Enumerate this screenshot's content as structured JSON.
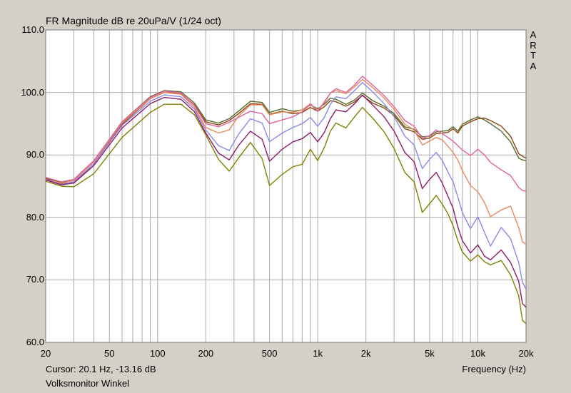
{
  "chart_data": {
    "type": "line",
    "title": "FR Magnitude dB re 20uPa/V (1/24 oct)",
    "side_label": [
      "A",
      "R",
      "T",
      "A"
    ],
    "xlabel": "Frequency (Hz)",
    "x_scale": "log",
    "xlim": [
      20,
      20000
    ],
    "ylim": [
      60,
      110
    ],
    "x_ticks": [
      {
        "v": 20,
        "label": "20"
      },
      {
        "v": 50,
        "label": "50"
      },
      {
        "v": 100,
        "label": "100"
      },
      {
        "v": 200,
        "label": "200"
      },
      {
        "v": 500,
        "label": "500"
      },
      {
        "v": 1000,
        "label": "1k"
      },
      {
        "v": 2000,
        "label": "2k"
      },
      {
        "v": 5000,
        "label": "5k"
      },
      {
        "v": 10000,
        "label": "10k"
      },
      {
        "v": 20000,
        "label": "20k"
      }
    ],
    "y_ticks": [
      {
        "v": 60,
        "label": "60.0"
      },
      {
        "v": 70,
        "label": "70.0"
      },
      {
        "v": 80,
        "label": "80.0"
      },
      {
        "v": 90,
        "label": "90.0"
      },
      {
        "v": 100,
        "label": "100.0"
      },
      {
        "v": 110,
        "label": "110.0"
      }
    ],
    "grid": true,
    "series": [
      {
        "color": "#556b2f",
        "x": [
          20,
          25,
          30,
          40,
          60,
          90,
          110,
          140,
          170,
          200,
          240,
          280,
          320,
          380,
          450,
          500,
          600,
          700,
          800,
          900,
          1000,
          1100,
          1200,
          1300,
          1500,
          1700,
          1900,
          2200,
          2600,
          3000,
          3500,
          4000,
          4500,
          5000,
          5500,
          6000,
          6500,
          7000,
          7500,
          8000,
          9000,
          10000,
          11000,
          12000,
          14000,
          16000,
          18000,
          19000,
          20000
        ],
        "y": [
          86.3,
          85.6,
          85.9,
          89.0,
          95.3,
          99.3,
          100.3,
          100.1,
          98.3,
          95.6,
          95.1,
          95.8,
          97.0,
          98.6,
          98.4,
          96.8,
          97.4,
          97.0,
          97.2,
          98.0,
          97.4,
          98.1,
          99.1,
          98.9,
          98.1,
          98.8,
          99.9,
          98.7,
          97.8,
          96.6,
          94.5,
          94.1,
          92.9,
          93.0,
          93.7,
          93.8,
          93.9,
          94.5,
          93.8,
          94.9,
          95.6,
          96.1,
          95.6,
          95.0,
          93.8,
          92.1,
          89.5,
          89.2,
          89.1
        ]
      },
      {
        "color": "#8b4513",
        "x": [
          20,
          25,
          30,
          40,
          60,
          90,
          110,
          140,
          170,
          200,
          240,
          280,
          320,
          380,
          450,
          500,
          600,
          700,
          800,
          900,
          1000,
          1100,
          1200,
          1300,
          1500,
          1700,
          1900,
          2200,
          2600,
          3000,
          3500,
          4000,
          4500,
          5000,
          5500,
          6000,
          6500,
          7000,
          7500,
          8000,
          9000,
          10000,
          11000,
          12000,
          14000,
          16000,
          18000,
          19000,
          20000
        ],
        "y": [
          86.2,
          85.4,
          85.6,
          88.6,
          94.9,
          99.0,
          100.0,
          99.8,
          98.0,
          95.3,
          94.8,
          95.5,
          96.6,
          98.2,
          98.1,
          96.5,
          97.0,
          96.6,
          96.8,
          97.6,
          97.0,
          97.7,
          98.7,
          98.5,
          97.8,
          98.5,
          99.5,
          98.3,
          97.5,
          96.3,
          94.2,
          93.7,
          92.5,
          92.7,
          93.4,
          93.5,
          93.6,
          94.2,
          93.5,
          94.6,
          95.3,
          95.8,
          95.9,
          95.5,
          94.6,
          93.0,
          90.2,
          89.8,
          89.5
        ]
      },
      {
        "color": "#e9895b",
        "x": [
          20,
          25,
          30,
          40,
          60,
          90,
          110,
          140,
          170,
          200,
          240,
          280,
          320,
          380,
          450,
          500,
          600,
          700,
          800,
          900,
          1000,
          1100,
          1200,
          1300,
          1500,
          1700,
          1900,
          2200,
          2600,
          3000,
          3500,
          4000,
          4500,
          5000,
          5500,
          6000,
          6500,
          7000,
          7500,
          8000,
          9000,
          10000,
          11000,
          12000,
          14000,
          16000,
          18000,
          19000,
          20000
        ],
        "y": [
          86.1,
          85.5,
          85.9,
          88.9,
          95.1,
          99.0,
          100.0,
          99.7,
          97.6,
          94.4,
          93.5,
          94.0,
          96.2,
          98.0,
          98.0,
          96.4,
          96.9,
          96.8,
          97.2,
          98.2,
          97.1,
          98.5,
          99.9,
          100.3,
          99.8,
          100.9,
          102.1,
          100.8,
          99.1,
          97.3,
          94.9,
          94.0,
          91.6,
          92.2,
          92.8,
          92.4,
          91.4,
          90.4,
          89.2,
          87.5,
          85.1,
          84.1,
          82.4,
          80.1,
          81.2,
          81.8,
          78.4,
          76.1,
          75.7
        ]
      },
      {
        "color": "#e0619f",
        "x": [
          20,
          25,
          30,
          40,
          60,
          90,
          110,
          140,
          170,
          200,
          240,
          280,
          320,
          380,
          450,
          500,
          600,
          700,
          800,
          900,
          1000,
          1100,
          1200,
          1300,
          1500,
          1700,
          1900,
          2200,
          2600,
          3000,
          3500,
          4000,
          4500,
          5000,
          5500,
          6000,
          6500,
          7000,
          7500,
          8000,
          9000,
          10000,
          11000,
          12000,
          14000,
          16000,
          18000,
          19000,
          20000
        ],
        "y": [
          86.4,
          85.7,
          86.1,
          89.1,
          95.3,
          99.2,
          100.2,
          99.9,
          97.9,
          95.0,
          94.5,
          95.2,
          96.0,
          97.0,
          96.6,
          95.0,
          95.6,
          96.1,
          96.9,
          98.1,
          97.0,
          98.3,
          99.9,
          100.6,
          100.0,
          101.2,
          102.6,
          101.2,
          99.5,
          97.7,
          95.5,
          94.6,
          92.6,
          93.1,
          94.0,
          93.4,
          92.8,
          92.2,
          91.5,
          90.8,
          89.9,
          90.9,
          90.0,
          88.8,
          87.6,
          86.7,
          84.8,
          84.3,
          84.2
        ]
      },
      {
        "color": "#8a89e6",
        "x": [
          20,
          25,
          30,
          40,
          60,
          90,
          110,
          140,
          170,
          200,
          240,
          280,
          320,
          380,
          450,
          500,
          600,
          700,
          800,
          900,
          1000,
          1100,
          1200,
          1300,
          1500,
          1700,
          1900,
          2200,
          2600,
          3000,
          3500,
          4000,
          4500,
          5000,
          5500,
          6000,
          6500,
          7000,
          7500,
          8000,
          9000,
          10000,
          11000,
          12000,
          14000,
          16000,
          18000,
          19000,
          20000
        ],
        "y": [
          86.1,
          85.3,
          85.7,
          88.6,
          94.7,
          98.6,
          99.6,
          99.3,
          97.3,
          94.0,
          91.5,
          90.7,
          93.3,
          95.8,
          95.1,
          92.1,
          93.5,
          94.4,
          95.0,
          96.0,
          94.6,
          96.0,
          98.1,
          99.3,
          99.0,
          100.3,
          101.6,
          100.1,
          98.2,
          96.1,
          93.0,
          91.6,
          87.8,
          89.3,
          90.4,
          89.1,
          87.3,
          85.7,
          83.3,
          80.8,
          78.2,
          80.1,
          77.6,
          75.4,
          78.4,
          76.6,
          72.8,
          69.6,
          68.5
        ]
      },
      {
        "color": "#8b1a6b",
        "x": [
          20,
          25,
          30,
          40,
          60,
          90,
          110,
          140,
          170,
          200,
          240,
          280,
          320,
          380,
          450,
          500,
          600,
          700,
          800,
          900,
          1000,
          1100,
          1200,
          1300,
          1500,
          1700,
          1900,
          2200,
          2600,
          3000,
          3500,
          4000,
          4500,
          5000,
          5500,
          6000,
          6500,
          7000,
          7500,
          8000,
          9000,
          10000,
          11000,
          12000,
          14000,
          16000,
          18000,
          19000,
          20000
        ],
        "y": [
          86.0,
          85.2,
          85.5,
          88.3,
          94.3,
          98.2,
          99.2,
          98.9,
          96.9,
          93.5,
          90.3,
          89.2,
          91.5,
          93.8,
          92.5,
          89.0,
          90.9,
          92.1,
          92.6,
          93.6,
          92.1,
          93.6,
          95.8,
          97.2,
          96.9,
          98.2,
          99.6,
          98.0,
          96.1,
          93.8,
          90.4,
          88.9,
          84.6,
          86.1,
          87.2,
          85.5,
          83.4,
          81.5,
          78.5,
          76.3,
          74.3,
          75.6,
          73.8,
          73.2,
          74.8,
          72.8,
          69.8,
          66.2,
          65.6
        ]
      },
      {
        "color": "#808000",
        "x": [
          20,
          25,
          30,
          40,
          60,
          90,
          110,
          140,
          170,
          200,
          240,
          280,
          320,
          380,
          450,
          500,
          600,
          700,
          800,
          900,
          1000,
          1100,
          1200,
          1300,
          1500,
          1700,
          1900,
          2200,
          2600,
          3000,
          3500,
          4000,
          4500,
          5000,
          5500,
          6000,
          6500,
          7000,
          7500,
          8000,
          9000,
          10000,
          11000,
          12000,
          14000,
          16000,
          18000,
          19000,
          20000
        ],
        "y": [
          85.8,
          85.0,
          84.9,
          87.0,
          92.8,
          96.8,
          98.1,
          98.1,
          96.4,
          93.2,
          89.3,
          87.4,
          89.5,
          92.0,
          89.4,
          85.1,
          86.9,
          88.1,
          88.5,
          90.9,
          89.1,
          91.2,
          93.8,
          95.1,
          94.3,
          96.1,
          97.6,
          95.9,
          93.7,
          91.0,
          87.2,
          85.7,
          80.8,
          82.2,
          83.5,
          82.1,
          80.6,
          78.7,
          76.3,
          74.5,
          73.0,
          74.0,
          72.9,
          72.4,
          73.1,
          70.8,
          67.5,
          63.5,
          63.0
        ]
      }
    ]
  },
  "footer": {
    "cursor": "Cursor: 20.1 Hz, -13.16 dB",
    "note": "Volksmonitor Winkel"
  }
}
